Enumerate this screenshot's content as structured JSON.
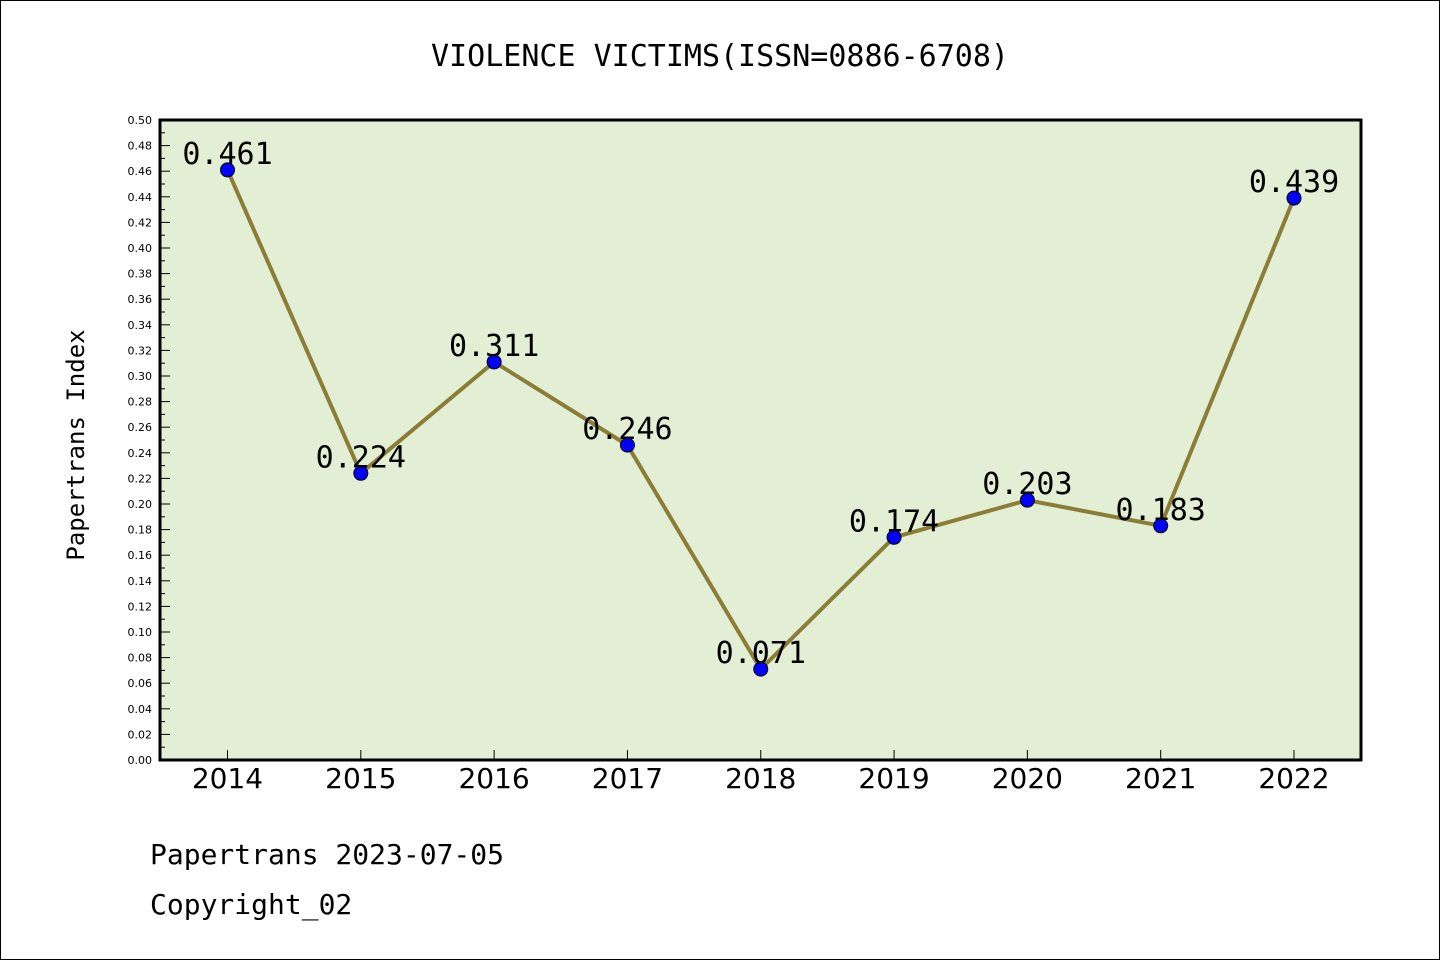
{
  "chart_data": {
    "type": "line",
    "title": "VIOLENCE VICTIMS(ISSN=0886-6708)",
    "ylabel": "Papertrans Index",
    "xlabel": "",
    "categories": [
      "2014",
      "2015",
      "2016",
      "2017",
      "2018",
      "2019",
      "2020",
      "2021",
      "2022"
    ],
    "series": [
      {
        "values": [
          0.461,
          0.224,
          0.311,
          0.246,
          0.071,
          0.174,
          0.203,
          0.183,
          0.439
        ],
        "labels": [
          "0.461",
          "0.224",
          "0.311",
          "0.246",
          "0.071",
          "0.174",
          "0.203",
          "0.183",
          "0.439"
        ]
      }
    ],
    "ylim": [
      0,
      0.5
    ],
    "yticks": [
      "0.00",
      "0.02",
      "0.04",
      "0.06",
      "0.08",
      "0.10",
      "0.12",
      "0.14",
      "0.16",
      "0.18",
      "0.20",
      "0.22",
      "0.24",
      "0.26",
      "0.28",
      "0.30",
      "0.32",
      "0.34",
      "0.36",
      "0.38",
      "0.40",
      "0.42",
      "0.44",
      "0.46",
      "0.48",
      "0.50"
    ],
    "grid": false,
    "colors": {
      "plot_background": "#e2efd5",
      "line": "#8b7d36",
      "marker": "#0000ff"
    }
  },
  "footer": {
    "line1": "Papertrans 2023-07-05",
    "line2": "Copyright_02"
  }
}
